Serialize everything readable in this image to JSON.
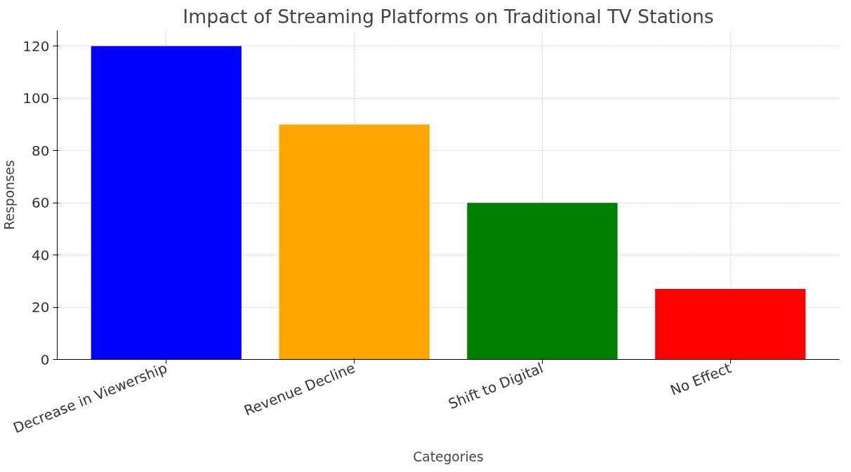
{
  "chart_data": {
    "type": "bar",
    "title": "Impact of Streaming Platforms on Traditional TV Stations",
    "xlabel": "Categories",
    "ylabel": "Responses",
    "categories": [
      "Decrease in Viewership",
      "Revenue Decline",
      "Shift to Digital",
      "No Effect"
    ],
    "values": [
      120,
      90,
      60,
      27
    ],
    "colors": [
      "#0000ff",
      "#ffa500",
      "#008000",
      "#ff0000"
    ],
    "ylim": [
      0,
      126
    ],
    "yticks": [
      0,
      20,
      40,
      60,
      80,
      100,
      120
    ],
    "grid": true
  }
}
